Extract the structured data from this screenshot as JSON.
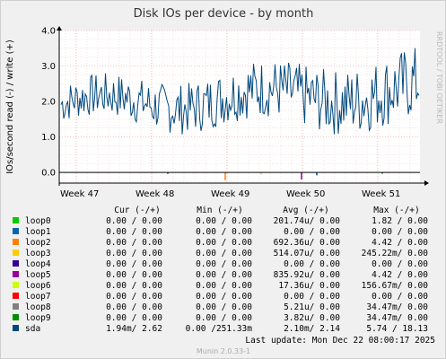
{
  "chart_data": {
    "type": "line",
    "title": "Disk IOs per device - by month",
    "ylabel": "IOs/second read (-) / write (+)",
    "side_label": "RRDTOOL / TOBI OETIKER",
    "ylim": [
      -0.3,
      4.0
    ],
    "y_ticks": [
      "4.0",
      "3.0",
      "2.0",
      "1.0",
      "0.0"
    ],
    "y_tick_values": [
      4.0,
      3.0,
      2.0,
      1.0,
      0.0
    ],
    "x_ticks": [
      "Week 47",
      "Week 48",
      "Week 49",
      "Week 50",
      "Week 51"
    ],
    "grid": true,
    "legend_headers": {
      "cur": "Cur (-/+)",
      "min": "Min (-/+)",
      "avg": "Avg (-/+)",
      "max": "Max (-/+)"
    },
    "series": [
      {
        "name": "loop0",
        "color": "#00cc00",
        "cur": "0.00 /  0.00",
        "min": "0.00 /  0.00",
        "avg": "201.74u/  0.00",
        "max": "1.82 /  0.00"
      },
      {
        "name": "loop1",
        "color": "#0066b3",
        "cur": "0.00 /  0.00",
        "min": "0.00 /  0.00",
        "avg": "0.00 /  0.00",
        "max": "0.00 /  0.00"
      },
      {
        "name": "loop2",
        "color": "#ff8000",
        "cur": "0.00 /  0.00",
        "min": "0.00 /  0.00",
        "avg": "692.36u/  0.00",
        "max": "4.42 /  0.00"
      },
      {
        "name": "loop3",
        "color": "#ffcc00",
        "cur": "0.00 /  0.00",
        "min": "0.00 /  0.00",
        "avg": "514.07u/  0.00",
        "max": "245.22m/  0.00"
      },
      {
        "name": "loop4",
        "color": "#330099",
        "cur": "0.00 /  0.00",
        "min": "0.00 /  0.00",
        "avg": "0.00 /  0.00",
        "max": "0.00 /  0.00"
      },
      {
        "name": "loop5",
        "color": "#990099",
        "cur": "0.00 /  0.00",
        "min": "0.00 /  0.00",
        "avg": "835.92u/  0.00",
        "max": "4.42 /  0.00"
      },
      {
        "name": "loop6",
        "color": "#ccff00",
        "cur": "0.00 /  0.00",
        "min": "0.00 /  0.00",
        "avg": "17.36u/  0.00",
        "max": "156.67m/  0.00"
      },
      {
        "name": "loop7",
        "color": "#ff0000",
        "cur": "0.00 /  0.00",
        "min": "0.00 /  0.00",
        "avg": "0.00 /  0.00",
        "max": "0.00 /  0.00"
      },
      {
        "name": "loop8",
        "color": "#808080",
        "cur": "0.00 /  0.00",
        "min": "0.00 /  0.00",
        "avg": "5.21u/  0.00",
        "max": "34.47m/  0.00"
      },
      {
        "name": "loop9",
        "color": "#008f00",
        "cur": "0.00 /  0.00",
        "min": "0.00 /  0.00",
        "avg": "3.82u/  0.00",
        "max": "34.47m/  0.00"
      },
      {
        "name": "sda",
        "color": "#00487d",
        "cur": "1.94m/  2.62",
        "min": "0.00 /251.33m",
        "avg": "2.10m/  2.14",
        "max": "5.74 / 18.13"
      }
    ],
    "last_update": "Last update:  Mon Dec 22 08:00:17 2025",
    "footer": "Munin 2.0.33-1"
  }
}
